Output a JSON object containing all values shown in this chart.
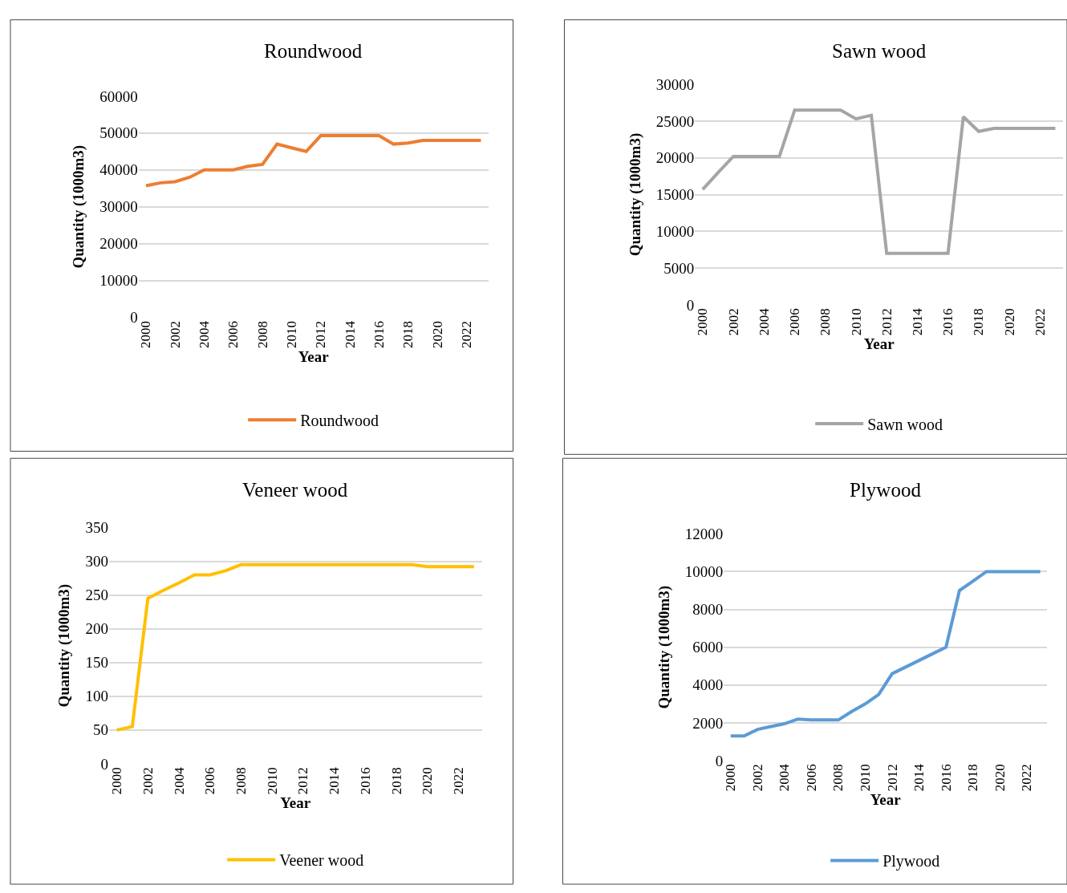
{
  "chart_data": [
    {
      "type": "line",
      "title": "Roundwood",
      "xlabel": "Year",
      "ylabel": "Quantity (1000m3)",
      "categories": [
        "2000",
        null,
        "2002",
        null,
        "2004",
        null,
        "2006",
        null,
        "2008",
        null,
        "2010",
        null,
        "2012",
        null,
        "2014",
        null,
        "2016",
        null,
        "2018",
        null,
        "2020",
        null,
        "2022",
        null
      ],
      "series": [
        {
          "name": "Roundwood",
          "color": "#ed7d31",
          "values": [
            35700,
            36500,
            36800,
            38000,
            40000,
            40000,
            40000,
            41000,
            41500,
            47000,
            46000,
            45000,
            49300,
            49300,
            49300,
            49300,
            49300,
            47000,
            47300,
            48000,
            48000,
            48000,
            48000,
            48000
          ]
        }
      ],
      "ylim": [
        0,
        60000
      ],
      "yticks": [
        0,
        10000,
        20000,
        30000,
        40000,
        50000,
        60000
      ],
      "grid": "y",
      "legend": "bottom"
    },
    {
      "type": "line",
      "title": "Sawn wood",
      "xlabel": "Year",
      "ylabel": "Quantity (1000m3)",
      "categories": [
        "2000",
        null,
        "2002",
        null,
        "2004",
        null,
        "2006",
        null,
        "2008",
        null,
        "2010",
        null,
        "2012",
        null,
        "2014",
        null,
        "2016",
        null,
        "2018",
        null,
        "2020",
        null,
        "2022",
        null
      ],
      "series": [
        {
          "name": "Sawn wood",
          "color": "#a5a5a5",
          "values": [
            15700,
            18000,
            20200,
            20200,
            20200,
            20200,
            26500,
            26500,
            26500,
            26500,
            25300,
            25800,
            7000,
            7000,
            7000,
            7000,
            7000,
            25600,
            23600,
            24000,
            24000,
            24000,
            24000,
            24000
          ]
        }
      ],
      "ylim": [
        0,
        30000
      ],
      "yticks": [
        0,
        5000,
        10000,
        15000,
        20000,
        25000,
        30000
      ],
      "grid": "y",
      "legend": "bottom"
    },
    {
      "type": "line",
      "title": "Veneer wood",
      "xlabel": "Year",
      "ylabel": "Quantity (1000m3)",
      "categories": [
        "2000",
        null,
        "2002",
        null,
        "2004",
        null,
        "2006",
        null,
        "2008",
        null,
        "2010",
        null,
        "2012",
        null,
        "2014",
        null,
        "2016",
        null,
        "2018",
        null,
        "2020",
        null,
        "2022",
        null
      ],
      "series": [
        {
          "name": "Veener wood",
          "color": "#ffc000",
          "values": [
            50,
            55,
            245,
            257,
            268,
            280,
            280,
            286,
            295,
            295,
            295,
            295,
            295,
            295,
            295,
            295,
            295,
            295,
            295,
            295,
            292,
            292,
            292,
            292
          ]
        }
      ],
      "ylim": [
        0,
        350
      ],
      "yticks": [
        0,
        50,
        100,
        150,
        200,
        250,
        300,
        350
      ],
      "grid": "y",
      "legend": "bottom"
    },
    {
      "type": "line",
      "title": "Plywood",
      "xlabel": "Year",
      "ylabel": "Quantity (1000m3)",
      "categories": [
        "2000",
        null,
        "2002",
        null,
        "2004",
        null,
        "2006",
        null,
        "2008",
        null,
        "2010",
        null,
        "2012",
        null,
        "2014",
        null,
        "2016",
        null,
        "2018",
        null,
        "2020",
        null,
        "2022",
        null
      ],
      "series": [
        {
          "name": "Plywood",
          "color": "#5b9bd5",
          "values": [
            1300,
            1300,
            1650,
            1800,
            1950,
            2200,
            2150,
            2150,
            2150,
            2600,
            3000,
            3500,
            4600,
            4950,
            5300,
            5650,
            6000,
            9000,
            9500,
            10000,
            10000,
            10000,
            10000,
            10000
          ]
        }
      ],
      "ylim": [
        0,
        12000
      ],
      "yticks": [
        0,
        2000,
        4000,
        6000,
        8000,
        10000,
        12000
      ],
      "grid": "y",
      "legend": "bottom"
    }
  ]
}
